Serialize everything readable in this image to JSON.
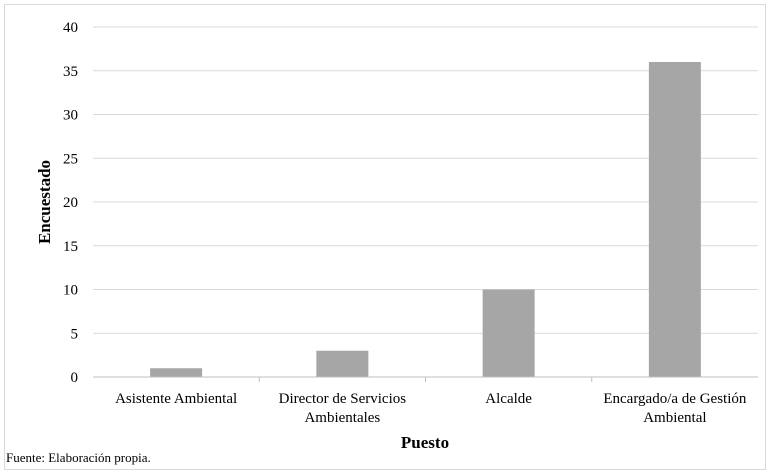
{
  "chart_data": {
    "type": "bar",
    "categories": [
      [
        "Asistente Ambiental"
      ],
      [
        "Director de Servicios",
        "Ambientales"
      ],
      [
        "Alcalde"
      ],
      [
        "Encargado/a de Gestión",
        "Ambiental"
      ]
    ],
    "values": [
      1,
      3,
      10,
      36
    ],
    "xlabel": "Puesto",
    "ylabel": "Encuestado",
    "ylim": [
      0,
      40
    ],
    "yticks": [
      0,
      5,
      10,
      15,
      20,
      25,
      30,
      35,
      40
    ],
    "grid": true,
    "colors": {
      "bar": "#a6a6a6",
      "grid": "#d9d9d9",
      "axis": "#bfbfbf"
    }
  },
  "source_note": "Fuente: Elaboración propia."
}
